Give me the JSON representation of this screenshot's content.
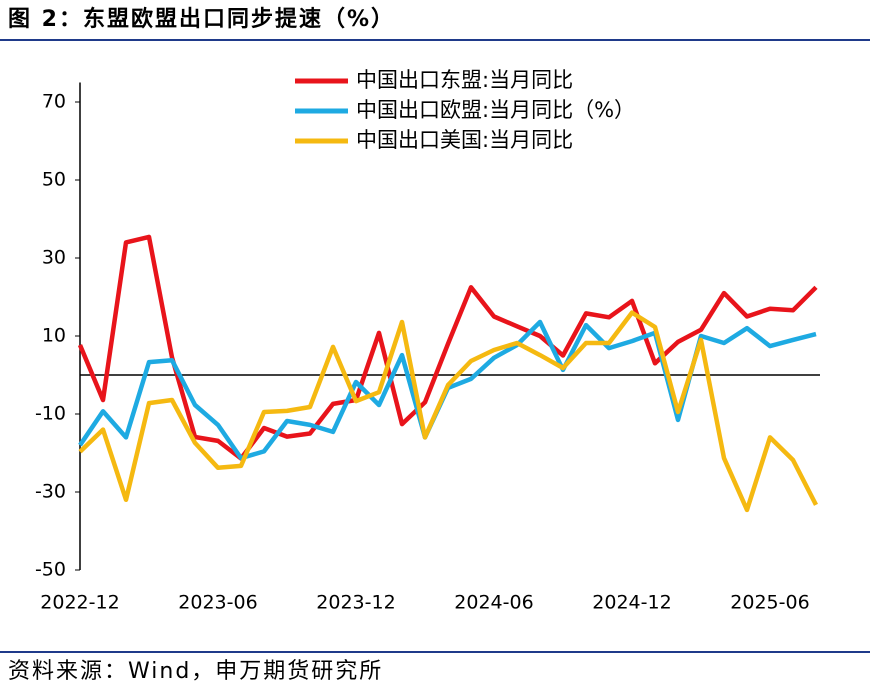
{
  "chart_data": {
    "type": "line",
    "title": "图 2：东盟欧盟出口同步提速（%）",
    "source": "资料来源：Wind，申万期货研究所",
    "categories": [
      "2022-12",
      null,
      null,
      null,
      null,
      null,
      "2023-06",
      null,
      null,
      null,
      null,
      null,
      "2023-12",
      null,
      null,
      null,
      null,
      null,
      "2024-06",
      null,
      null,
      null,
      null,
      null,
      "2024-12",
      null,
      null,
      null,
      null,
      null,
      "2025-06",
      null,
      null
    ],
    "series": [
      {
        "name": "中国出口东盟:当月同比",
        "color": "#e8141b",
        "values": [
          7.7,
          -6.4,
          34,
          35.4,
          4.5,
          -15.9,
          -16.9,
          -21.4,
          -13.6,
          -15.8,
          -15,
          -7.4,
          -6.4,
          10.8,
          -12.6,
          -7,
          8,
          22.5,
          15,
          12.5,
          10,
          5,
          15.8,
          14.8,
          19,
          3,
          8.5,
          11.6,
          21,
          15,
          17,
          16.6,
          22.5
        ]
      },
      {
        "name": "中国出口欧盟:当月同比（%）",
        "color": "#1eaae2",
        "values": [
          -18,
          -9.3,
          -16,
          3.3,
          3.8,
          -7.7,
          -12.8,
          -21.3,
          -19.6,
          -11.8,
          -12.8,
          -14.6,
          -1.8,
          -7.7,
          5.1,
          -16,
          -3.3,
          -1,
          4.4,
          7.7,
          13.6,
          1.3,
          12.8,
          6.9,
          8.7,
          10.8,
          -11.5,
          10,
          8.2,
          12,
          7.4,
          9,
          10.5
        ]
      },
      {
        "name": "中国出口美国:当月同比",
        "color": "#f5b911",
        "values": [
          -19.7,
          -14,
          -32,
          -7.2,
          -6.4,
          -17.4,
          -23.8,
          -23.3,
          -9.5,
          -9.2,
          -8.2,
          7.2,
          -6.7,
          -4.4,
          13.6,
          -16,
          -2.6,
          3.6,
          6.4,
          8.2,
          5.1,
          1.8,
          8.2,
          8.2,
          16,
          12.3,
          -9.5,
          9,
          -21.3,
          -34.6,
          -16,
          -21.8,
          -33.3
        ]
      }
    ],
    "ylim": [
      -50,
      75
    ],
    "yticks": [
      -50,
      -30,
      -10,
      10,
      30,
      50,
      70
    ],
    "legend": "top"
  }
}
